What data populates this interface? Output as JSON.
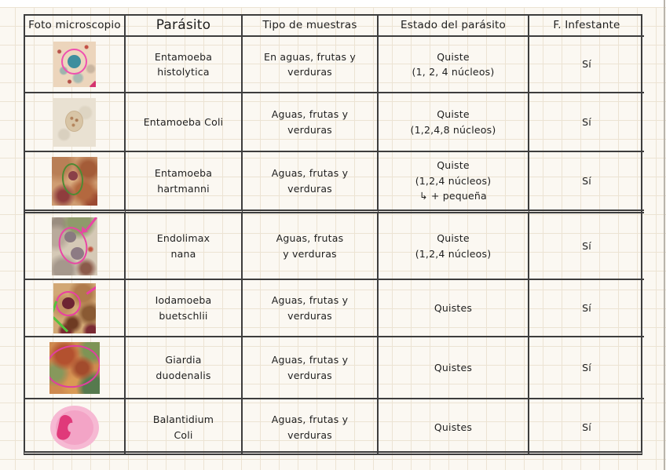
{
  "colors": {
    "paper": "#fbf8f2",
    "grid_line": "#ece3d3",
    "table_line": "#3d3d3d",
    "ink": "#1e1e1e",
    "annotation_pink": "#ea3fa2",
    "annotation_green": "#4e8a33",
    "highlight_green": "#55c23c",
    "balantidium_pink": "#f6b9d3",
    "balantidium_nucleus": "#e0397a"
  },
  "table": {
    "headers": [
      "Foto microscopio",
      "Parásito",
      "Tipo de muestras",
      "Estado del parásito",
      "F. Infestante"
    ],
    "rows": [
      {
        "photo": "entamoeba-histolytica-micrograph",
        "parasite": "Entamoeba\nhistolytica",
        "sample": "En aguas, frutas y\nverduras",
        "state": "Quiste\n(1, 2, 4 núcleos)",
        "infective": "Sí"
      },
      {
        "photo": "entamoeba-coli-micrograph",
        "parasite": "Entamoeba Coli",
        "sample": "Aguas, frutas y\nverduras",
        "state": "Quiste\n(1,2,4,8 núcleos)",
        "infective": "Sí"
      },
      {
        "photo": "entamoeba-hartmanni-micrograph",
        "parasite": "Entamoeba\nhartmanni",
        "sample": "Aguas, frutas y\nverduras",
        "state": "Quiste\n(1,2,4 núcleos)\n↳ + pequeña",
        "infective": "Sí"
      },
      {
        "photo": "endolimax-nana-micrograph",
        "parasite": "Endolimax\nnana",
        "sample": "Aguas, frutas\ny verduras",
        "state": "Quiste\n(1,2,4 núcleos)",
        "infective": "Sí"
      },
      {
        "photo": "iodamoeba-buetschlii-micrograph",
        "parasite": "Iodamoeba\nbuetschlii",
        "sample": "Aguas, frutas y\nverduras",
        "state": "Quistes",
        "infective": "Sí"
      },
      {
        "photo": "giardia-duodenalis-micrograph",
        "parasite": "Giardia\nduodenalis",
        "sample": "Aguas, frutas y\nverduras",
        "state": "Quistes",
        "infective": "Sí"
      },
      {
        "photo": "balantidium-coli-drawing",
        "parasite": "Balantidium\nColi",
        "sample": "Aguas, frutas y\nverduras",
        "state": "Quistes",
        "infective": "Sí"
      }
    ]
  }
}
